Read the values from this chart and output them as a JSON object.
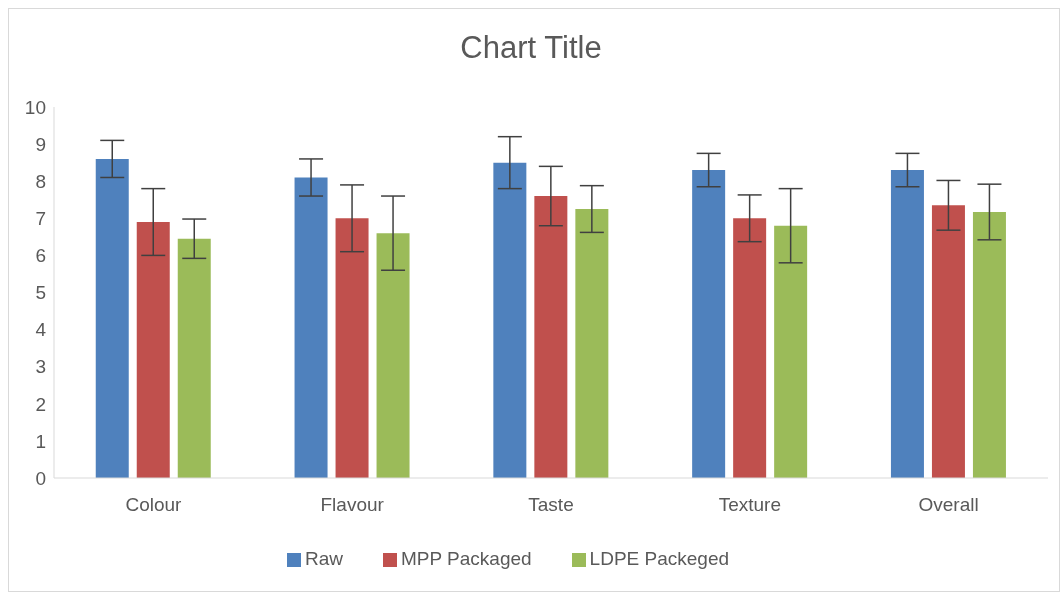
{
  "chart_data": {
    "type": "bar",
    "title": "Chart Title",
    "categories": [
      "Colour",
      "Flavour",
      "Taste",
      "Texture",
      "Overall"
    ],
    "series": [
      {
        "name": "Raw",
        "color": "#4f81bd",
        "values": [
          8.6,
          8.1,
          8.5,
          8.3,
          8.3
        ],
        "errors": [
          0.5,
          0.5,
          0.7,
          0.45,
          0.45
        ]
      },
      {
        "name": "MPP Packaged",
        "color": "#c0504d",
        "values": [
          6.9,
          7.0,
          7.6,
          7.0,
          7.35
        ],
        "errors": [
          0.9,
          0.9,
          0.8,
          0.63,
          0.67
        ]
      },
      {
        "name": "LDPE Packeged",
        "color": "#9bbb59",
        "values": [
          6.45,
          6.6,
          7.25,
          6.8,
          7.17
        ],
        "errors": [
          0.53,
          1.0,
          0.63,
          1.0,
          0.75
        ]
      }
    ],
    "ylim": [
      0,
      10
    ],
    "yticks": [
      0,
      1,
      2,
      3,
      4,
      5,
      6,
      7,
      8,
      9,
      10
    ],
    "grid": false,
    "legend": "bottom"
  }
}
